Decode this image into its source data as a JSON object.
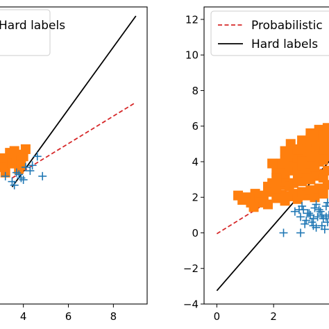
{
  "chart_data": [
    {
      "type": "scatter",
      "title": "",
      "xlabel": "",
      "ylabel": "",
      "xlim": [
        2.9,
        9.5
      ],
      "ylim": [
        -4.0,
        12.5
      ],
      "x_ticks": [
        {
          "value": 4,
          "label": "4"
        },
        {
          "value": 6,
          "label": "6"
        },
        {
          "value": 8,
          "label": "8"
        }
      ],
      "y_ticks": [],
      "grid": false,
      "legend": {
        "placement": "top-left",
        "entries": [
          {
            "label": "Hard labels",
            "style": "solid",
            "color": "#000000"
          }
        ]
      },
      "series": [
        {
          "kind": "line",
          "style": "dashed",
          "color": "#d62728",
          "x": [
            3.5,
            9.0
          ],
          "y": [
            3.0,
            7.2
          ]
        },
        {
          "kind": "line",
          "style": "solid",
          "color": "#000000",
          "x": [
            3.5,
            9.0
          ],
          "y": [
            2.5,
            12.0
          ]
        },
        {
          "kind": "points",
          "marker": "square",
          "color": "#ff7f0e",
          "x": [
            3.1,
            3.3,
            3.5,
            3.7,
            3.9,
            3.2,
            3.6,
            3.8,
            4.0,
            3.4,
            3.9,
            4.1,
            3.0
          ],
          "y": [
            3.6,
            3.9,
            3.8,
            4.0,
            4.3,
            3.3,
            4.5,
            3.5,
            4.2,
            4.4,
            3.7,
            4.6,
            4.1
          ]
        },
        {
          "kind": "points",
          "marker": "plus",
          "color": "#1f77b4",
          "x": [
            3.2,
            3.5,
            3.7,
            3.9,
            4.1,
            3.6,
            4.3,
            4.4,
            4.0,
            3.8
          ],
          "y": [
            3.1,
            2.8,
            3.3,
            3.0,
            3.6,
            2.6,
            3.4,
            3.7,
            2.9,
            3.2
          ]
        },
        {
          "kind": "points",
          "marker": "plus",
          "color": "#1f77b4",
          "x": [
            4.62,
            4.85
          ],
          "y": [
            4.2,
            3.1
          ]
        }
      ]
    },
    {
      "type": "scatter",
      "title": "",
      "xlabel": "",
      "ylabel": "",
      "xlim": [
        -0.45,
        4.0
      ],
      "ylim": [
        -4.0,
        12.7
      ],
      "x_ticks": [
        {
          "value": 0,
          "label": "0"
        },
        {
          "value": 2,
          "label": "2"
        }
      ],
      "y_ticks": [
        {
          "value": 12,
          "label": "12"
        },
        {
          "value": 10,
          "label": "10"
        },
        {
          "value": 8,
          "label": "8"
        },
        {
          "value": 6,
          "label": "6"
        },
        {
          "value": 4,
          "label": "4"
        },
        {
          "value": 2,
          "label": "2"
        },
        {
          "value": 0,
          "label": "0"
        },
        {
          "value": -2,
          "label": "−2"
        },
        {
          "value": -4,
          "label": "−4"
        }
      ],
      "grid": false,
      "legend": {
        "placement": "top-left",
        "entries": [
          {
            "label": "Probabilistic",
            "style": "dashed",
            "color": "#d62728"
          },
          {
            "label": "Hard labels",
            "style": "solid",
            "color": "#000000"
          }
        ]
      },
      "series": [
        {
          "kind": "line",
          "style": "dashed",
          "color": "#d62728",
          "x": [
            0.0,
            4.0
          ],
          "y": [
            -0.05,
            3.9
          ]
        },
        {
          "kind": "line",
          "style": "solid",
          "color": "#000000",
          "x": [
            0.0,
            4.0
          ],
          "y": [
            -3.25,
            4.1
          ]
        },
        {
          "kind": "points",
          "marker": "square",
          "color": "#ff7f0e",
          "x": [
            0.75,
            0.9,
            1.05,
            1.2,
            1.35,
            1.5,
            1.65,
            1.8,
            1.95,
            2.1,
            2.25,
            2.4,
            2.55,
            2.7,
            2.85,
            3.0,
            3.15,
            3.3,
            3.45,
            3.6,
            3.75,
            3.9,
            1.8,
            1.95,
            2.1,
            2.25,
            2.4,
            2.55,
            2.7,
            2.85,
            3.0,
            3.15,
            3.3,
            3.45,
            3.6,
            3.75,
            3.9,
            2.1,
            2.25,
            2.4,
            2.55,
            2.7,
            2.85,
            3.0,
            3.15,
            3.3,
            3.45,
            3.6,
            3.75,
            3.9,
            2.4,
            2.55,
            2.7,
            2.85,
            3.0,
            3.15,
            3.3,
            3.45,
            3.6,
            3.75,
            3.9,
            2.7,
            2.85,
            3.0,
            3.15,
            3.3,
            3.45,
            3.6,
            3.75,
            3.9,
            3.0,
            3.15,
            3.3,
            3.45,
            3.6,
            3.75,
            3.9,
            3.3,
            3.45,
            3.6,
            3.75,
            3.9,
            3.6,
            3.75,
            3.9,
            3.9,
            2.1,
            2.4,
            2.25,
            1.95,
            2.55,
            1.55,
            1.3,
            3.0,
            2.85,
            2.6
          ],
          "y": [
            2.1,
            1.85,
            2.0,
            1.7,
            2.2,
            1.9,
            2.1,
            1.6,
            2.3,
            1.95,
            2.15,
            1.8,
            2.05,
            2.2,
            1.9,
            2.3,
            2.1,
            2.4,
            2.0,
            2.5,
            2.2,
            2.7,
            2.6,
            2.8,
            2.5,
            2.7,
            2.9,
            2.6,
            2.8,
            3.0,
            2.9,
            3.1,
            3.0,
            3.2,
            3.3,
            3.1,
            3.5,
            3.4,
            3.6,
            3.3,
            3.5,
            3.7,
            3.4,
            3.8,
            3.6,
            3.9,
            3.7,
            4.0,
            4.1,
            4.3,
            4.1,
            4.0,
            4.3,
            4.2,
            4.4,
            4.5,
            4.3,
            4.6,
            4.4,
            4.7,
            4.8,
            4.6,
            4.7,
            4.9,
            4.8,
            5.0,
            4.9,
            5.1,
            5.2,
            5.0,
            5.2,
            5.1,
            5.3,
            5.4,
            5.2,
            5.5,
            5.3,
            5.6,
            5.5,
            5.4,
            5.7,
            5.6,
            5.8,
            5.5,
            5.7,
            5.9,
            3.1,
            4.6,
            3.9,
            3.9,
            4.5,
            1.7,
            1.45,
            4.0,
            4.7,
            5.0
          ]
        },
        {
          "kind": "points",
          "marker": "plus",
          "color": "#1f77b4",
          "x": [
            2.75,
            2.95,
            3.05,
            3.15,
            3.25,
            3.35,
            3.45,
            3.55,
            3.65,
            3.75,
            3.85,
            3.95,
            3.1,
            3.3,
            3.5,
            3.7,
            3.9,
            3.2,
            3.4,
            3.6,
            3.8,
            3.0,
            3.5,
            3.9,
            2.9,
            3.4,
            3.7,
            3.85
          ],
          "y": [
            1.2,
            0.9,
            1.3,
            0.7,
            1.1,
            0.6,
            1.4,
            0.9,
            1.2,
            0.8,
            1.5,
            1.0,
            0.5,
            1.0,
            0.3,
            0.4,
            0.6,
            1.1,
            0.8,
            1.3,
            0.2,
            1.5,
            1.6,
            1.7,
            1.3,
            0.4,
            1.0,
            0.9
          ]
        },
        {
          "kind": "points",
          "marker": "plus",
          "color": "#1f77b4",
          "x": [
            2.35,
            2.95
          ],
          "y": [
            0.0,
            0.0
          ]
        }
      ]
    }
  ]
}
